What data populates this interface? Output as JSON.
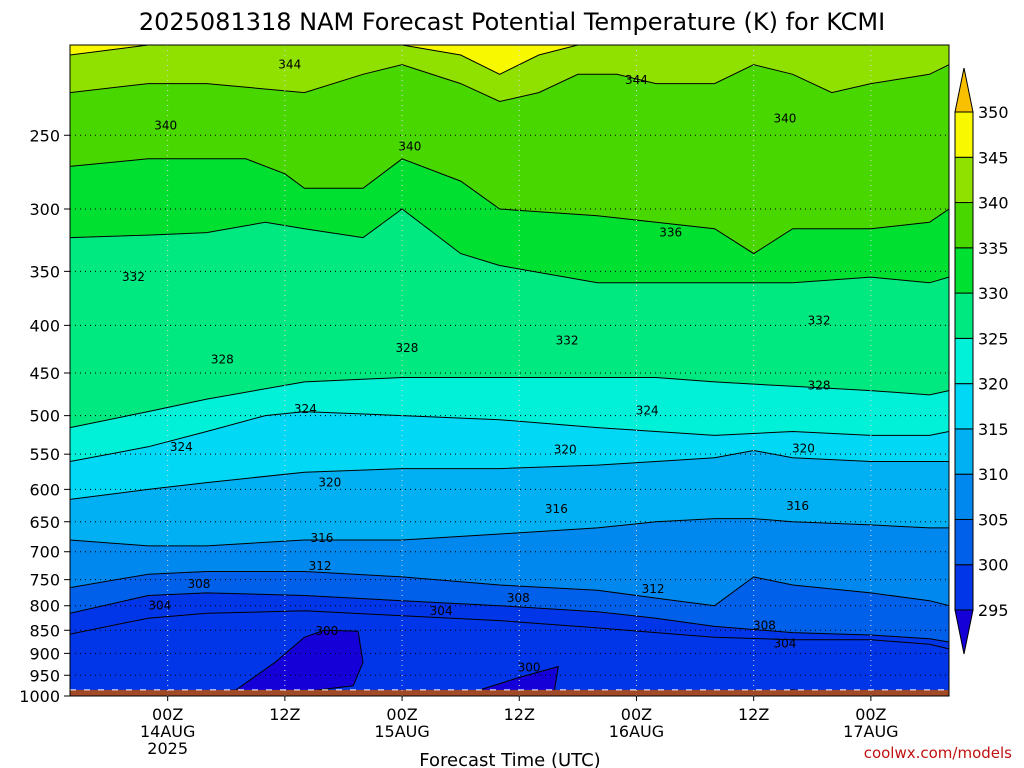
{
  "chart_data": {
    "type": "heatmap",
    "title": "2025081318 NAM Forecast Potential Temperature (K) for KCMI",
    "xlabel": "Forecast Time (UTC)",
    "ylabel": "",
    "credit": "coolwx.com/models",
    "y_axis": {
      "scale": "log-pressure",
      "reversed": true,
      "ylim": [
        1000,
        200
      ],
      "ticks": [
        "250",
        "300",
        "350",
        "400",
        "450",
        "500",
        "550",
        "600",
        "650",
        "700",
        "750",
        "800",
        "850",
        "900",
        "950",
        "1000"
      ]
    },
    "x_axis": {
      "xlim_hours": [
        -4,
        86
      ],
      "ticks": [
        {
          "hour": 6,
          "l1": "00Z",
          "l2": "14AUG",
          "l3": "2025"
        },
        {
          "hour": 18,
          "l1": "12Z",
          "l2": "",
          "l3": ""
        },
        {
          "hour": 30,
          "l1": "00Z",
          "l2": "15AUG",
          "l3": ""
        },
        {
          "hour": 42,
          "l1": "12Z",
          "l2": "",
          "l3": ""
        },
        {
          "hour": 54,
          "l1": "00Z",
          "l2": "16AUG",
          "l3": ""
        },
        {
          "hour": 66,
          "l1": "12Z",
          "l2": "",
          "l3": ""
        },
        {
          "hour": 78,
          "l1": "00Z",
          "l2": "17AUG",
          "l3": ""
        }
      ]
    },
    "colorbar": {
      "levels": [
        "295",
        "300",
        "305",
        "310",
        "315",
        "320",
        "325",
        "330",
        "335",
        "340",
        "345",
        "350"
      ],
      "colors": [
        "#1500d8",
        "#0035e8",
        "#0060ea",
        "#0088ee",
        "#00b0f2",
        "#00d8f6",
        "#00f0d8",
        "#00e880",
        "#00e030",
        "#48d800",
        "#90e000",
        "#f8f800",
        "#f8c000"
      ]
    },
    "contour_labels": [
      {
        "text": "344",
        "hour": 18.5,
        "p": 210
      },
      {
        "text": "344",
        "hour": 54.0,
        "p": 218
      },
      {
        "text": "340",
        "hour": 5.8,
        "p": 244
      },
      {
        "text": "340",
        "hour": 30.8,
        "p": 257
      },
      {
        "text": "340",
        "hour": 69.2,
        "p": 240
      },
      {
        "text": "336",
        "hour": 57.5,
        "p": 318
      },
      {
        "text": "332",
        "hour": 2.5,
        "p": 355
      },
      {
        "text": "332",
        "hour": 46.9,
        "p": 415
      },
      {
        "text": "332",
        "hour": 72.7,
        "p": 395
      },
      {
        "text": "328",
        "hour": 11.6,
        "p": 435
      },
      {
        "text": "328",
        "hour": 30.5,
        "p": 423
      },
      {
        "text": "328",
        "hour": 72.7,
        "p": 464
      },
      {
        "text": "324",
        "hour": 7.4,
        "p": 540
      },
      {
        "text": "324",
        "hour": 20.1,
        "p": 492
      },
      {
        "text": "324",
        "hour": 55.1,
        "p": 494
      },
      {
        "text": "320",
        "hour": 22.6,
        "p": 590
      },
      {
        "text": "320",
        "hour": 46.7,
        "p": 544
      },
      {
        "text": "320",
        "hour": 71.1,
        "p": 542
      },
      {
        "text": "316",
        "hour": 21.8,
        "p": 677
      },
      {
        "text": "316",
        "hour": 45.8,
        "p": 630
      },
      {
        "text": "316",
        "hour": 70.5,
        "p": 625
      },
      {
        "text": "312",
        "hour": 21.6,
        "p": 725
      },
      {
        "text": "312",
        "hour": 55.7,
        "p": 768
      },
      {
        "text": "308",
        "hour": 9.2,
        "p": 758
      },
      {
        "text": "308",
        "hour": 41.9,
        "p": 785
      },
      {
        "text": "308",
        "hour": 67.1,
        "p": 840
      },
      {
        "text": "304",
        "hour": 5.2,
        "p": 800
      },
      {
        "text": "304",
        "hour": 34.0,
        "p": 810
      },
      {
        "text": "304",
        "hour": 69.2,
        "p": 878
      },
      {
        "text": "300",
        "hour": 22.3,
        "p": 852
      },
      {
        "text": "300",
        "hour": 43.0,
        "p": 932
      }
    ],
    "series": [
      {
        "name": "",
        "level": 296,
        "color": "#1500d8",
        "x": [
          6,
          13,
          17,
          20,
          22,
          25.5,
          26,
          25,
          18,
          10,
          6
        ],
        "y": [
          1000,
          985,
          920,
          865,
          850,
          852,
          920,
          975,
          995,
          995,
          1000
        ]
      },
      {
        "name": "",
        "level": 296,
        "color": "#1500d8",
        "x": [
          36,
          42,
          46,
          45.5,
          36
        ],
        "y": [
          1000,
          955,
          930,
          1000,
          1000
        ]
      },
      {
        "name": "",
        "level": 296,
        "color": "#1500d8",
        "x": [
          65,
          70,
          72,
          71,
          65
        ],
        "y": [
          1000,
          985,
          990,
          1000,
          1000
        ]
      },
      {
        "name": "",
        "level": 300,
        "color": "#0035e8",
        "x": [
          -4,
          4,
          10,
          20,
          30,
          40,
          50,
          56,
          62,
          70,
          78,
          84,
          86
        ],
        "y": [
          858,
          825,
          815,
          810,
          820,
          830,
          845,
          855,
          865,
          870,
          870,
          880,
          890
        ]
      },
      {
        "name": "",
        "level": 304,
        "color": "#0060ea",
        "x": [
          -4,
          4,
          10,
          20,
          30,
          40,
          50,
          56,
          62,
          70,
          78,
          84,
          86
        ],
        "y": [
          815,
          780,
          775,
          780,
          790,
          800,
          812,
          825,
          842,
          855,
          860,
          868,
          875
        ]
      },
      {
        "name": "",
        "level": 308,
        "color": "#0088ee",
        "x": [
          -4,
          4,
          10,
          20,
          30,
          40,
          50,
          56,
          62,
          66,
          70,
          78,
          84,
          86
        ],
        "y": [
          765,
          740,
          735,
          735,
          745,
          760,
          770,
          785,
          800,
          745,
          760,
          775,
          790,
          800
        ]
      },
      {
        "name": "",
        "level": 312,
        "color": "#00b0f2",
        "x": [
          -4,
          4,
          10,
          20,
          30,
          40,
          50,
          56,
          62,
          66,
          70,
          78,
          84,
          86
        ],
        "y": [
          680,
          690,
          690,
          680,
          680,
          670,
          660,
          650,
          645,
          645,
          650,
          655,
          660,
          660
        ]
      },
      {
        "name": "",
        "level": 316,
        "color": "#00d8f6",
        "x": [
          -4,
          4,
          10,
          20,
          30,
          40,
          50,
          56,
          62,
          66,
          70,
          78,
          84,
          86
        ],
        "y": [
          615,
          600,
          590,
          575,
          570,
          570,
          565,
          560,
          555,
          545,
          555,
          560,
          560,
          560
        ]
      },
      {
        "name": "",
        "level": 320,
        "color": "#00f0d8",
        "x": [
          -4,
          4,
          10,
          16,
          20,
          30,
          40,
          50,
          56,
          62,
          70,
          78,
          84,
          86
        ],
        "y": [
          560,
          540,
          520,
          500,
          495,
          500,
          505,
          515,
          520,
          525,
          520,
          525,
          525,
          520
        ]
      },
      {
        "name": "",
        "level": 324,
        "color": "#00e880",
        "x": [
          -4,
          4,
          10,
          20,
          30,
          40,
          50,
          56,
          62,
          70,
          78,
          84,
          86
        ],
        "y": [
          515,
          495,
          480,
          460,
          455,
          455,
          455,
          455,
          460,
          465,
          470,
          475,
          470
        ]
      },
      {
        "name": "",
        "level": 328,
        "color": "#00e030",
        "x": [
          -4,
          4,
          10,
          16,
          20,
          26,
          30,
          36,
          40,
          50,
          56,
          62,
          70,
          78,
          84,
          86
        ],
        "y": [
          322,
          320,
          318,
          310,
          315,
          322,
          300,
          335,
          345,
          360,
          360,
          360,
          360,
          355,
          360,
          355
        ]
      },
      {
        "name": "",
        "level": 332,
        "color": "#48d800",
        "x": [
          -4,
          4,
          10,
          14,
          18,
          20,
          26,
          30,
          36,
          40,
          50,
          56,
          62,
          66,
          70,
          78,
          84,
          86
        ],
        "y": [
          270,
          265,
          265,
          265,
          275,
          285,
          285,
          265,
          280,
          300,
          305,
          310,
          315,
          335,
          315,
          315,
          310,
          300
        ]
      },
      {
        "name": "",
        "level": 336,
        "color": "#90e000",
        "x": [
          -4,
          4,
          10,
          20,
          26,
          30,
          36,
          40,
          44,
          48,
          52,
          56,
          62,
          66,
          70,
          74,
          78,
          84,
          86
        ],
        "y": [
          225,
          220,
          220,
          225,
          215,
          210,
          220,
          230,
          225,
          215,
          215,
          220,
          220,
          210,
          215,
          225,
          220,
          215,
          210
        ]
      },
      {
        "name": "",
        "level": 340,
        "color": "#f8f800",
        "x": [
          -4,
          4,
          10,
          20,
          30,
          36,
          40,
          44,
          48,
          52,
          56,
          62,
          66,
          70,
          74,
          78,
          84,
          86
        ],
        "y": [
          205,
          200,
          200,
          200,
          200,
          205,
          215,
          205,
          200,
          200,
          200,
          200,
          200,
          200,
          200,
          200,
          200,
          200
        ]
      }
    ],
    "ground": {
      "p_top": 985,
      "color": "#a04a28"
    }
  }
}
